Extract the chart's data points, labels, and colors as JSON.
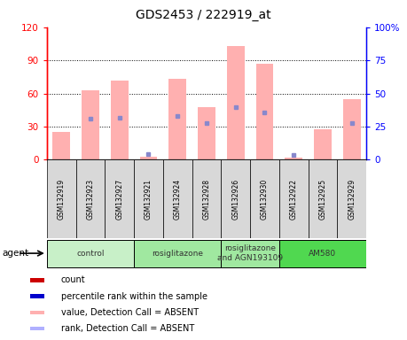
{
  "title": "GDS2453 / 222919_at",
  "samples": [
    "GSM132919",
    "GSM132923",
    "GSM132927",
    "GSM132921",
    "GSM132924",
    "GSM132928",
    "GSM132926",
    "GSM132930",
    "GSM132922",
    "GSM132925",
    "GSM132929"
  ],
  "pink_bar_values": [
    25,
    63,
    72,
    3,
    73,
    48,
    103,
    87,
    2,
    28,
    55
  ],
  "blue_dot_values": [
    null,
    37,
    38,
    5,
    40,
    33,
    48,
    43,
    4,
    null,
    33
  ],
  "ylim_left": [
    0,
    120
  ],
  "ylim_right": [
    0,
    100
  ],
  "yticks_left": [
    0,
    30,
    60,
    90,
    120
  ],
  "yticks_right": [
    0,
    25,
    50,
    75,
    100
  ],
  "ytick_labels_left": [
    "0",
    "30",
    "60",
    "90",
    "120"
  ],
  "ytick_labels_right": [
    "0",
    "25",
    "50",
    "75",
    "100%"
  ],
  "agent_groups": [
    {
      "label": "control",
      "start": 0,
      "end": 3,
      "color": "#c8f0c8"
    },
    {
      "label": "rosiglitazone",
      "start": 3,
      "end": 6,
      "color": "#a0e8a0"
    },
    {
      "label": "rosiglitazone\nand AGN193109",
      "start": 6,
      "end": 8,
      "color": "#a0e8a0"
    },
    {
      "label": "AM580",
      "start": 8,
      "end": 11,
      "color": "#50d850"
    }
  ],
  "legend_items": [
    {
      "color": "#cc0000",
      "label": "count"
    },
    {
      "color": "#0000cc",
      "label": "percentile rank within the sample"
    },
    {
      "color": "#ffb0b0",
      "label": "value, Detection Call = ABSENT"
    },
    {
      "color": "#b0b0ff",
      "label": "rank, Detection Call = ABSENT"
    }
  ],
  "bar_color_pink": "#ffb0b0",
  "bar_color_blue_dot": "#8888cc",
  "bar_width": 0.6,
  "agent_label": "agent"
}
